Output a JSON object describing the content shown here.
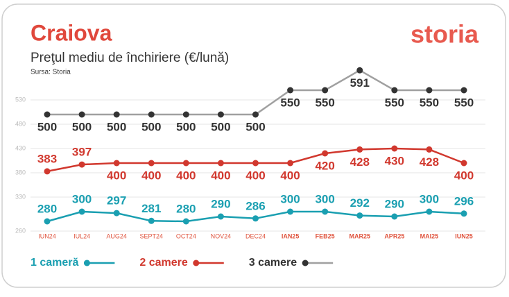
{
  "chart_data": {
    "type": "line",
    "title": "Craiova",
    "subtitle": "Preţul mediu de închiriere (€/lună)",
    "source": "Sursa: Storia",
    "logo": "storia",
    "categories": [
      "IUN24",
      "IUL24",
      "AUG24",
      "SEPT24",
      "OCT24",
      "NOV24",
      "DEC24",
      "IAN25",
      "FEB25",
      "MAR25",
      "APR25",
      "MAI25",
      "IUN25"
    ],
    "series": [
      {
        "name": "1 cameră",
        "color": "#1a9fb1",
        "values": [
          280,
          300,
          297,
          281,
          280,
          290,
          286,
          300,
          300,
          292,
          290,
          300,
          296
        ]
      },
      {
        "name": "2 camere",
        "color": "#d1382e",
        "values": [
          383,
          397,
          400,
          400,
          400,
          400,
          400,
          400,
          420,
          428,
          430,
          428,
          400
        ]
      },
      {
        "name": "3 camere",
        "color": "#a0a0a0",
        "values": [
          500,
          500,
          500,
          500,
          500,
          500,
          500,
          550,
          550,
          591,
          550,
          550,
          550
        ]
      }
    ],
    "ylim": [
      250,
      600
    ],
    "yticks": [
      260,
      330,
      380,
      430,
      480,
      530
    ],
    "grid": true
  }
}
